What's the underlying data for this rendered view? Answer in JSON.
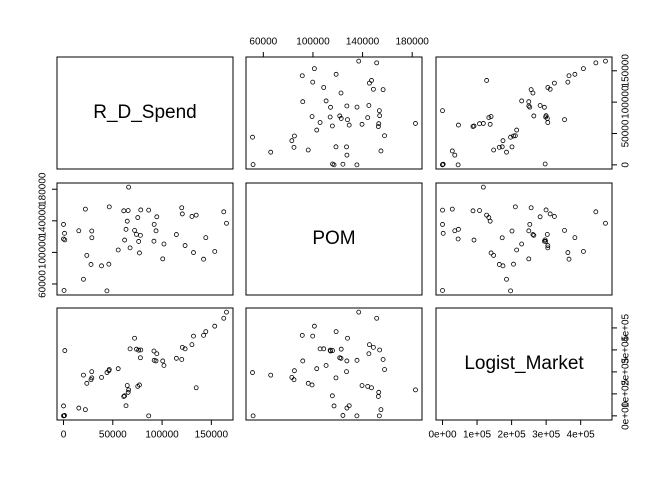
{
  "chart_data": {
    "type": "scatter_matrix",
    "variables": [
      {
        "name": "R_D_Spend",
        "lim": [
          -6614,
          171963
        ],
        "ticks": [
          0,
          50000,
          100000,
          150000
        ],
        "values": [
          165349.2,
          162597.7,
          153441.51,
          144372.41,
          142107.34,
          131876.9,
          134615.46,
          130298.13,
          120542.52,
          123334.88,
          101913.08,
          100671.96,
          93863.75,
          91992.39,
          119943.24,
          114523.61,
          78013.11,
          94657.16,
          91749.16,
          86419.7,
          76253.86,
          78389.47,
          73994.56,
          67532.53,
          77044.01,
          64664.71,
          75328.87,
          72107.6,
          66051.52,
          65605.48,
          61994.48,
          61136.38,
          63408.86,
          55493.95,
          46426.07,
          46014.02,
          28663.76,
          44069.95,
          20229.59,
          38558.51,
          28754.33,
          27892.92,
          23640.93,
          15505.73,
          22177.74,
          1000.23,
          1315.46,
          0,
          542.05,
          0
        ]
      },
      {
        "name": "POM",
        "lim": [
          46028,
          187901
        ],
        "ticks": [
          60000,
          100000,
          140000,
          180000
        ],
        "values": [
          136897.8,
          151377.59,
          101145.55,
          118671.85,
          91391.77,
          99814.71,
          147198.87,
          145530.06,
          148718.95,
          108679.17,
          110594.11,
          91790.61,
          127320.38,
          135495.07,
          156547.42,
          122616.84,
          121597.55,
          145077.58,
          114175.79,
          153514.11,
          113867.3,
          153773.43,
          122782.75,
          105751.03,
          99281.34,
          139553.16,
          144135.98,
          127864.55,
          182645.56,
          153032.06,
          115641.28,
          152701.92,
          129219.61,
          103057.49,
          157693.92,
          85047.44,
          127056.21,
          51283.14,
          65947.93,
          82982.09,
          118546.05,
          84710.77,
          96189.63,
          127382.3,
          154806.14,
          124153.04,
          115816.21,
          135426.92,
          51743.15,
          116983.8
        ]
      },
      {
        "name": "Logist_Market",
        "lim": [
          -18871,
          490655
        ],
        "ticks": [
          {
            "value": 0,
            "label": "0e+00"
          },
          {
            "value": 100000,
            "label": "1e+05"
          },
          {
            "value": 200000,
            "label": "2e+05"
          },
          {
            "value": 300000,
            "label": "3e+05"
          },
          {
            "value": 400000,
            "label": "4e+05"
          }
        ],
        "values": [
          471784.1,
          443898.53,
          407934.54,
          383199.62,
          366168.42,
          362861.36,
          127716.82,
          323876.68,
          311613.29,
          304981.62,
          229160.95,
          249744.55,
          249839.44,
          252664.93,
          256512.92,
          261776.23,
          264346.06,
          282574.31,
          294919.57,
          0,
          298664.47,
          299737.29,
          303319.26,
          304768.73,
          140574.81,
          137962.62,
          134050.07,
          353183.81,
          118148.2,
          107138.38,
          91131.24,
          88218.23,
          46085.25,
          214634.81,
          210797.67,
          205517.64,
          201126.82,
          197029.42,
          185265.1,
          174999.3,
          172795.67,
          164470.71,
          148001.11,
          35534.17,
          28334.72,
          1903.93,
          297114.46,
          0,
          0,
          45173.06
        ]
      }
    ]
  }
}
